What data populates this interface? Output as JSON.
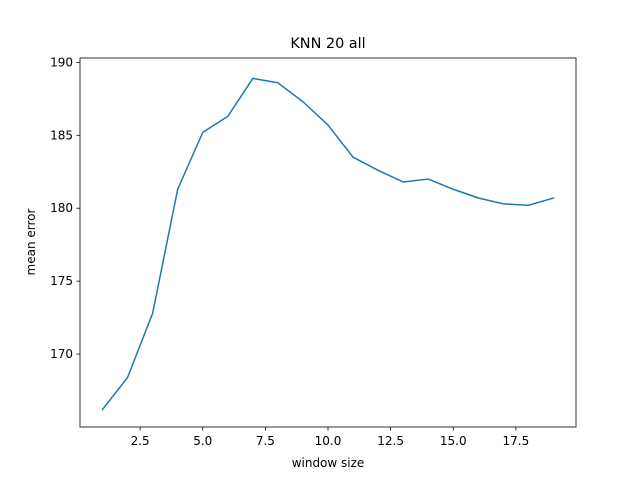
{
  "chart_data": {
    "type": "line",
    "title": "KNN 20 all",
    "xlabel": "window size",
    "ylabel": "mean error",
    "xlim": [
      0.1,
      19.9
    ],
    "ylim": [
      165.0,
      190.3
    ],
    "xticks": [
      2.5,
      5.0,
      7.5,
      10.0,
      12.5,
      15.0,
      17.5
    ],
    "xtick_labels": [
      "2.5",
      "5.0",
      "7.5",
      "10.0",
      "12.5",
      "15.0",
      "17.5"
    ],
    "yticks": [
      170,
      175,
      180,
      185,
      190
    ],
    "ytick_labels": [
      "170",
      "175",
      "180",
      "185",
      "190"
    ],
    "grid": false,
    "series": [
      {
        "color": "#1f77b4",
        "x": [
          1,
          2,
          3,
          4,
          5,
          6,
          7,
          8,
          9,
          10,
          11,
          12,
          13,
          14,
          15,
          16,
          17,
          18,
          19
        ],
        "values": [
          166.2,
          168.4,
          172.8,
          181.3,
          185.2,
          186.3,
          188.9,
          188.6,
          187.3,
          185.7,
          183.5,
          182.6,
          181.8,
          182.0,
          181.3,
          180.7,
          180.3,
          180.2,
          180.7
        ]
      }
    ]
  }
}
